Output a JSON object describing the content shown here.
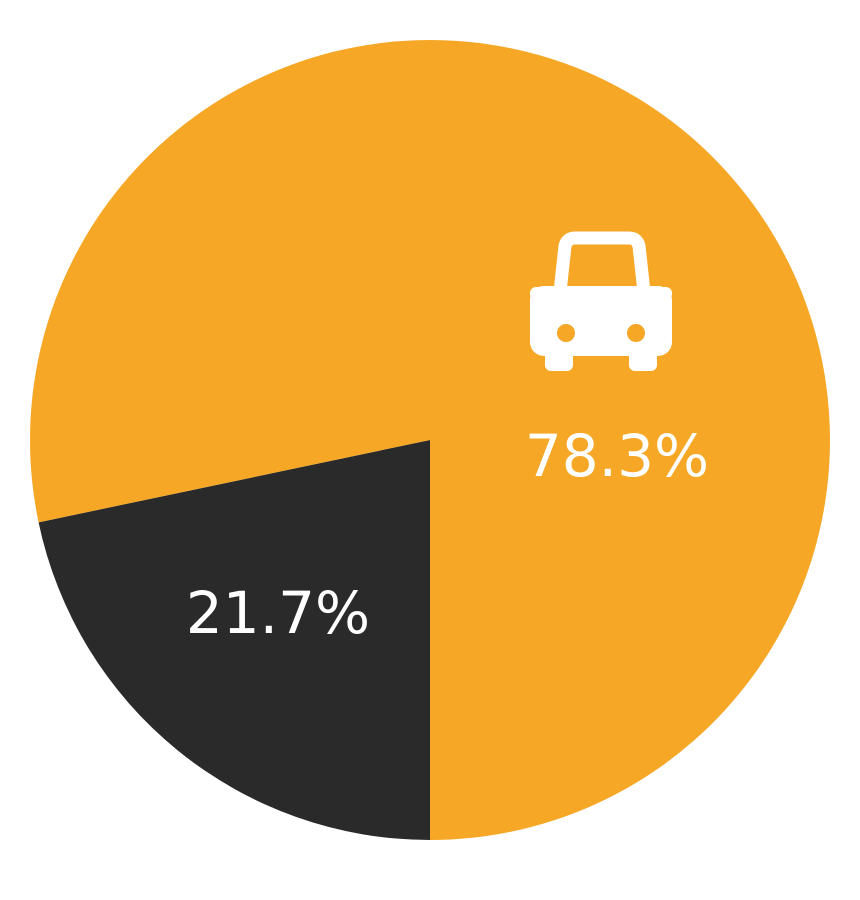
{
  "chart_data": {
    "type": "pie",
    "values": [
      78.3,
      21.7
    ],
    "value_labels": [
      "78.3%",
      "21.7%"
    ],
    "colors": [
      "#f6a726",
      "#2a2a2a"
    ]
  }
}
